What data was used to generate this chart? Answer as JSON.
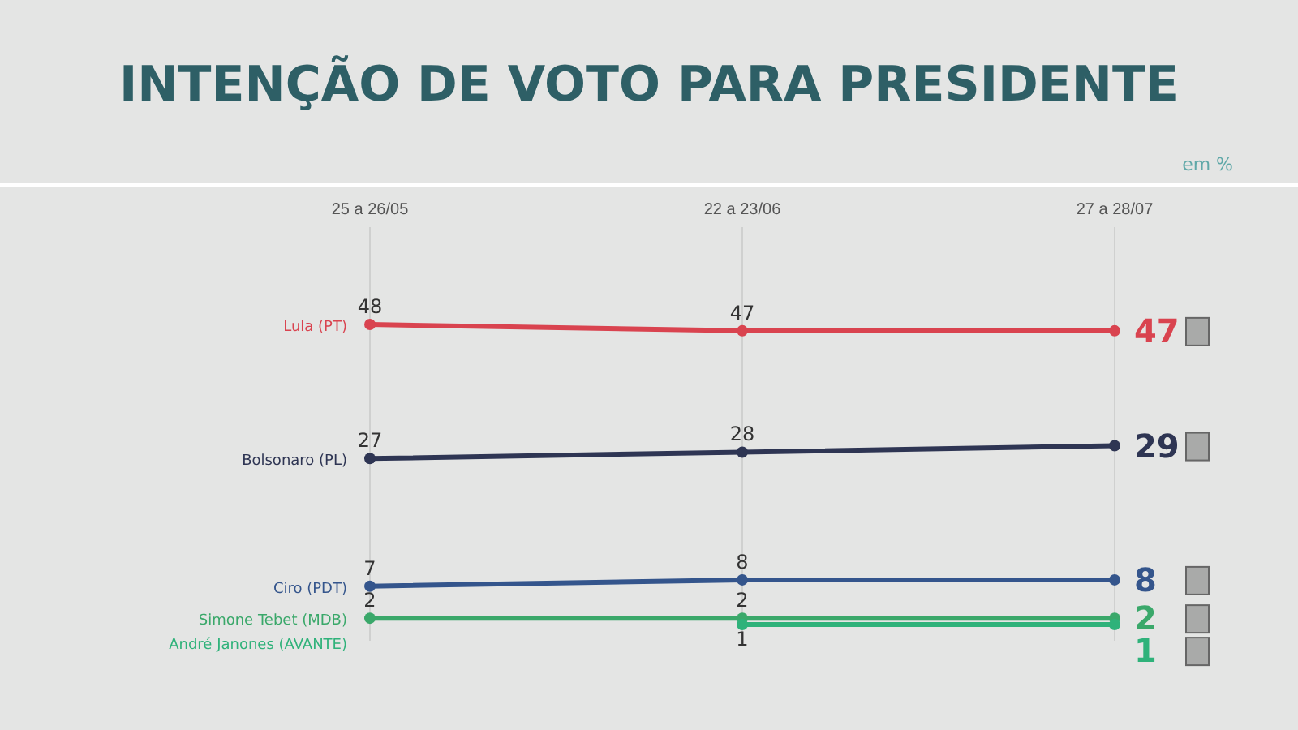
{
  "chart_data": {
    "type": "line",
    "title": "INTENÇÃO DE VOTO PARA PRESIDENTE",
    "subtitle": "em %",
    "categories": [
      "25 a 26/05",
      "22 a 23/06",
      "27 a 28/07"
    ],
    "series": [
      {
        "name": "Lula (PT)",
        "color": "#d9434f",
        "values": [
          48,
          47,
          47
        ],
        "value_labels": [
          "48",
          "47",
          "47"
        ]
      },
      {
        "name": "Bolsonaro (PL)",
        "color": "#2e3553",
        "values": [
          27,
          28,
          29
        ],
        "value_labels": [
          "27",
          "28",
          "29"
        ]
      },
      {
        "name": "Ciro (PDT)",
        "color": "#34558c",
        "values": [
          7,
          8,
          8
        ],
        "value_labels": [
          "7",
          "8",
          "8"
        ]
      },
      {
        "name": "Simone Tebet (MDB)",
        "color": "#3aa86a",
        "values": [
          2,
          2,
          2
        ],
        "value_labels": [
          "2",
          "2",
          "2"
        ]
      },
      {
        "name": "André Janones (AVANTE)",
        "color": "#2fb27a",
        "values": [
          null,
          1,
          1
        ],
        "value_labels": [
          null,
          "1",
          "1"
        ]
      }
    ],
    "tick_labels": "x",
    "grid": "x",
    "marker": "circle"
  }
}
